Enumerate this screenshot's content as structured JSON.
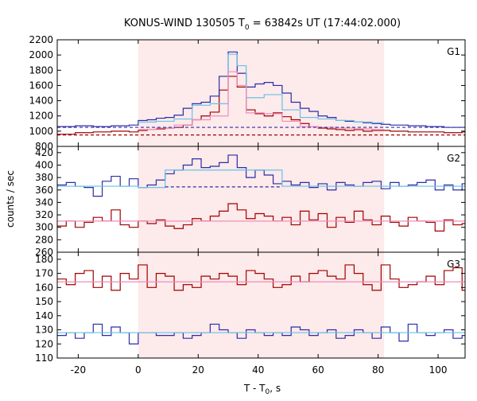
{
  "chart_data": {
    "type": "line",
    "title": "KONUS-WIND 130505 T",
    "title_sub": "0",
    "title_rest": " = 63842s UT (17:44:02.000)",
    "xlabel": "T - T",
    "xlabel_sub": "0",
    "xlabel_unit": ", s",
    "ylabel": "counts / sec",
    "xlim": [
      -27,
      109
    ],
    "xticks": [
      -20,
      0,
      20,
      40,
      60,
      80,
      100
    ],
    "shaded_interval": [
      0,
      82
    ],
    "colors": {
      "shade": "#fdeaea",
      "red": "#a00000",
      "blue": "#2c2ca8",
      "lightblue": "#66c2e8",
      "pink": "#f08cbc"
    },
    "panels": [
      {
        "name": "G1",
        "ylim": [
          800,
          2200
        ],
        "yticks": [
          800,
          1000,
          1200,
          1400,
          1600,
          1800,
          2000,
          2200
        ],
        "series": [
          {
            "color": "red",
            "step": true,
            "x": [
              -27,
              -21,
              -15,
              -9,
              -3,
              0,
              3,
              6,
              9,
              12,
              15,
              18,
              21,
              24,
              27,
              30,
              33,
              36,
              39,
              42,
              45,
              48,
              51,
              54,
              57,
              60,
              63,
              66,
              69,
              72,
              75,
              78,
              81,
              84,
              90,
              96,
              102,
              108,
              109
            ],
            "y": [
              960,
              980,
              990,
              1000,
              990,
              1010,
              1020,
              1030,
              1040,
              1050,
              1080,
              1150,
              1200,
              1250,
              1540,
              1720,
              1580,
              1280,
              1230,
              1200,
              1240,
              1190,
              1150,
              1100,
              1060,
              1040,
              1030,
              1020,
              1010,
              1020,
              1000,
              1010,
              1010,
              1000,
              990,
              990,
              980,
              990,
              990
            ]
          },
          {
            "color": "blue",
            "step": true,
            "x": [
              -27,
              -21,
              -15,
              -9,
              -3,
              0,
              3,
              6,
              9,
              12,
              15,
              18,
              21,
              24,
              27,
              30,
              33,
              36,
              39,
              42,
              45,
              48,
              51,
              54,
              57,
              60,
              63,
              66,
              69,
              72,
              75,
              78,
              81,
              84,
              90,
              96,
              102,
              108,
              109
            ],
            "y": [
              1060,
              1070,
              1060,
              1070,
              1080,
              1140,
              1150,
              1170,
              1180,
              1210,
              1300,
              1360,
              1380,
              1460,
              1720,
              2040,
              1760,
              1580,
              1620,
              1640,
              1600,
              1500,
              1380,
              1300,
              1260,
              1200,
              1180,
              1140,
              1130,
              1120,
              1110,
              1100,
              1090,
              1080,
              1070,
              1060,
              1050,
              1050,
              1050
            ]
          },
          {
            "color": "lightblue",
            "step": true,
            "x": [
              0,
              6,
              12,
              18,
              24,
              30,
              33,
              36,
              42,
              48,
              54,
              60,
              66,
              72,
              78,
              82
            ],
            "y": [
              1120,
              1130,
              1160,
              1340,
              1360,
              2010,
              1860,
              1440,
              1480,
              1280,
              1180,
              1160,
              1140,
              1120,
              1110,
              1110
            ]
          },
          {
            "color": "pink",
            "step": true,
            "x": [
              0,
              6,
              12,
              18,
              24,
              30,
              33,
              36,
              42,
              48,
              54,
              60,
              66,
              72,
              78,
              82
            ],
            "y": [
              1020,
              1040,
              1080,
              1150,
              1200,
              1780,
              1600,
              1240,
              1230,
              1130,
              1060,
              1050,
              1040,
              1030,
              1020,
              1020
            ]
          },
          {
            "color": "blue",
            "dashed": true,
            "x": [
              -27,
              109
            ],
            "y": [
              1050,
              1050
            ]
          },
          {
            "color": "red",
            "dashed": true,
            "x": [
              -27,
              109
            ],
            "y": [
              950,
              950
            ]
          }
        ]
      },
      {
        "name": "G2",
        "ylim": [
          260,
          430
        ],
        "yticks": [
          260,
          280,
          300,
          320,
          340,
          360,
          380,
          400,
          420
        ],
        "series": [
          {
            "color": "blue",
            "step": true,
            "x": [
              -27,
              -24,
              -21,
              -18,
              -15,
              -12,
              -9,
              -6,
              -3,
              0,
              3,
              6,
              9,
              12,
              15,
              18,
              21,
              24,
              27,
              30,
              33,
              36,
              39,
              42,
              45,
              48,
              51,
              54,
              57,
              60,
              63,
              66,
              69,
              72,
              75,
              78,
              81,
              84,
              87,
              90,
              93,
              96,
              99,
              102,
              105,
              108,
              109
            ],
            "y": [
              368,
              372,
              366,
              364,
              350,
              374,
              382,
              366,
              378,
              364,
              368,
              376,
              386,
              392,
              400,
              410,
              396,
              398,
              404,
              416,
              396,
              380,
              392,
              384,
              370,
              374,
              368,
              372,
              364,
              370,
              360,
              372,
              368,
              366,
              372,
              374,
              362,
              372,
              366,
              368,
              372,
              376,
              360,
              368,
              360,
              370,
              370
            ]
          },
          {
            "color": "red",
            "step": true,
            "x": [
              -27,
              -24,
              -21,
              -18,
              -15,
              -12,
              -9,
              -6,
              -3,
              0,
              3,
              6,
              9,
              12,
              15,
              18,
              21,
              24,
              27,
              30,
              33,
              36,
              39,
              42,
              45,
              48,
              51,
              54,
              57,
              60,
              63,
              66,
              69,
              72,
              75,
              78,
              81,
              84,
              87,
              90,
              93,
              96,
              99,
              102,
              105,
              108,
              109
            ],
            "y": [
              302,
              310,
              300,
              308,
              316,
              310,
              328,
              304,
              300,
              310,
              306,
              312,
              302,
              298,
              304,
              314,
              310,
              318,
              326,
              338,
              328,
              314,
              322,
              318,
              310,
              316,
              304,
              326,
              312,
              322,
              300,
              316,
              308,
              326,
              312,
              304,
              318,
              308,
              302,
              316,
              310,
              308,
              294,
              312,
              304,
              306,
              306
            ]
          },
          {
            "color": "lightblue",
            "step": true,
            "x": [
              -27,
              0,
              9,
              48,
              82,
              109
            ],
            "y": [
              366,
              364,
              392,
              366,
              366,
              366
            ]
          },
          {
            "color": "pink",
            "step": true,
            "x": [
              -27,
              109
            ],
            "y": [
              310,
              310
            ]
          },
          {
            "color": "blue",
            "dashed": true,
            "x": [
              9,
              48
            ],
            "y": [
              365,
              365
            ]
          }
        ]
      },
      {
        "name": "G3",
        "ylim": [
          110,
          185
        ],
        "yticks": [
          110,
          120,
          130,
          140,
          150,
          160,
          170,
          180
        ],
        "series": [
          {
            "color": "red",
            "step": true,
            "x": [
              -27,
              -24,
              -21,
              -18,
              -15,
              -12,
              -9,
              -6,
              -3,
              0,
              3,
              6,
              9,
              12,
              15,
              18,
              21,
              24,
              27,
              30,
              33,
              36,
              39,
              42,
              45,
              48,
              51,
              54,
              57,
              60,
              63,
              66,
              69,
              72,
              75,
              78,
              81,
              84,
              87,
              90,
              93,
              96,
              99,
              102,
              105,
              108,
              109
            ],
            "y": [
              166,
              162,
              170,
              172,
              160,
              168,
              158,
              170,
              166,
              176,
              160,
              170,
              168,
              158,
              162,
              160,
              168,
              166,
              170,
              168,
              162,
              172,
              170,
              166,
              160,
              162,
              168,
              164,
              170,
              172,
              168,
              166,
              176,
              170,
              162,
              158,
              176,
              166,
              160,
              162,
              164,
              168,
              162,
              172,
              174,
              158,
              158
            ]
          },
          {
            "color": "blue",
            "step": true,
            "x": [
              -27,
              -24,
              -21,
              -18,
              -15,
              -12,
              -9,
              -6,
              -3,
              0,
              3,
              6,
              9,
              12,
              15,
              18,
              21,
              24,
              27,
              30,
              33,
              36,
              39,
              42,
              45,
              48,
              51,
              54,
              57,
              60,
              63,
              66,
              69,
              72,
              75,
              78,
              81,
              84,
              87,
              90,
              93,
              96,
              99,
              102,
              105,
              108,
              109
            ],
            "y": [
              126,
              128,
              124,
              128,
              134,
              126,
              132,
              128,
              120,
              128,
              128,
              126,
              126,
              128,
              124,
              126,
              128,
              134,
              130,
              128,
              124,
              130,
              128,
              126,
              128,
              126,
              132,
              130,
              126,
              128,
              130,
              124,
              126,
              130,
              128,
              124,
              132,
              128,
              122,
              134,
              128,
              126,
              128,
              130,
              124,
              126,
              126
            ]
          },
          {
            "color": "pink",
            "step": true,
            "x": [
              -27,
              109
            ],
            "y": [
              164,
              164
            ]
          },
          {
            "color": "lightblue",
            "step": true,
            "x": [
              -27,
              109
            ],
            "y": [
              128,
              128
            ]
          }
        ]
      }
    ]
  }
}
